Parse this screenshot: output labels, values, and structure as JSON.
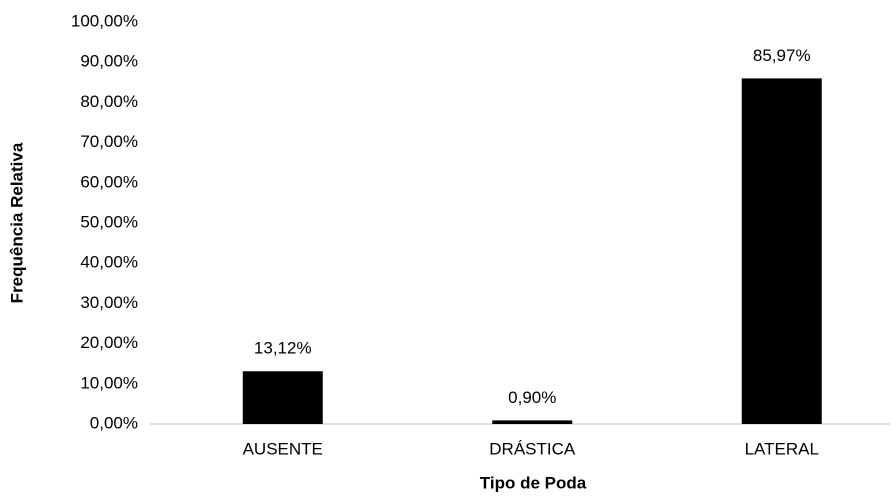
{
  "chart_data": {
    "type": "bar",
    "x_label": "Tipo de Poda",
    "y_label": "Frequência Relativa",
    "categories": [
      "AUSENTE",
      "DRÁSTICA",
      "LATERAL"
    ],
    "values": [
      13.12,
      0.9,
      85.97
    ],
    "value_labels": [
      "13,12%",
      "0,90%",
      "85,97%"
    ],
    "color": "#000000",
    "ylim": [
      0,
      100
    ],
    "yticks": [
      {
        "value": 0,
        "label": "0,00%"
      },
      {
        "value": 10,
        "label": "10,00%"
      },
      {
        "value": 20,
        "label": "20,00%"
      },
      {
        "value": 30,
        "label": "30,00%"
      },
      {
        "value": 40,
        "label": "40,00%"
      },
      {
        "value": 50,
        "label": "50,00%"
      },
      {
        "value": 60,
        "label": "60,00%"
      },
      {
        "value": 70,
        "label": "70,00%"
      },
      {
        "value": 80,
        "label": "80,00%"
      },
      {
        "value": 90,
        "label": "90,00%"
      },
      {
        "value": 100,
        "label": "100,00%"
      }
    ],
    "grid": false
  }
}
